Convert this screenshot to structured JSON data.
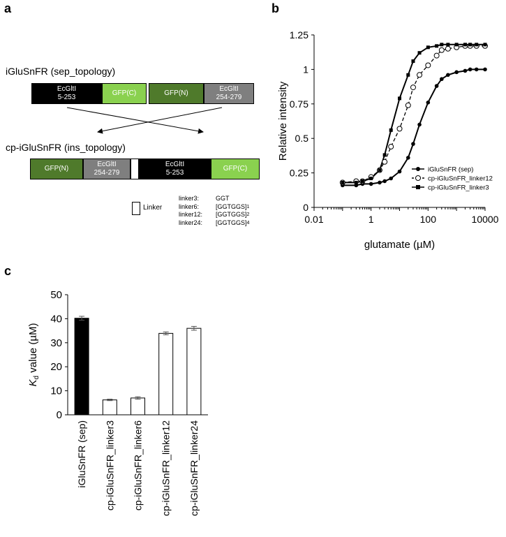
{
  "panel_a": {
    "letter": "a",
    "sep_label": "iGluSnFR (sep_topology)",
    "ins_label": "cp-iGluSnFR (ins_topology)",
    "sep_boxes": [
      {
        "line1": "EcGltI",
        "line2": "5-253",
        "color": "#000000",
        "text_color": "#ffffff"
      },
      {
        "line1": "GFP(C)",
        "line2": "",
        "color": "#8ad14f",
        "text_color": "#ffffff"
      },
      {
        "line1": "GFP(N)",
        "line2": "",
        "color": "#4f7a2b",
        "text_color": "#ffffff"
      },
      {
        "line1": "EcGltI",
        "line2": "254-279",
        "color": "#7f7f7f",
        "text_color": "#ffffff"
      }
    ],
    "ins_boxes": [
      {
        "line1": "GFP(N)",
        "line2": "",
        "color": "#4f7a2b",
        "text_color": "#ffffff"
      },
      {
        "line1": "EcGltI",
        "line2": "254-279",
        "color": "#7f7f7f",
        "text_color": "#ffffff"
      },
      {
        "line1": "",
        "line2": "",
        "color": "#ffffff",
        "text_color": "#000000"
      },
      {
        "line1": "EcGltI",
        "line2": "5-253",
        "color": "#000000",
        "text_color": "#ffffff"
      },
      {
        "line1": "GFP(C)",
        "line2": "",
        "color": "#8ad14f",
        "text_color": "#ffffff"
      }
    ],
    "linker_legend": "Linker",
    "linkers": [
      {
        "name": "linker3:",
        "seq": "GGT",
        "sub": ""
      },
      {
        "name": "linker6:",
        "seq": "[GGTGGS]",
        "sub": "1"
      },
      {
        "name": "linker12:",
        "seq": "[GGTGGS]",
        "sub": "2"
      },
      {
        "name": "linker24:",
        "seq": "[GGTGGS]",
        "sub": "4"
      }
    ]
  },
  "chart_data": [
    {
      "panel": "b",
      "type": "scatter",
      "xscale": "log",
      "xlim": [
        0.01,
        10000
      ],
      "ylim": [
        0,
        1.25
      ],
      "xticks": [
        "0.01",
        "1",
        "100",
        "10000"
      ],
      "yticks": [
        "0",
        "0.25",
        "0.5",
        "0.75",
        "1",
        "1.25"
      ],
      "xlabel": "glutamate (µM)",
      "ylabel": "Relative intensity",
      "legend_position": "bottom-right",
      "series": [
        {
          "name": "iGluSnFR (sep)",
          "marker": "filled-circle",
          "line": "solid",
          "x": [
            0.1,
            0.3,
            0.5,
            1,
            2,
            3,
            5,
            10,
            20,
            30,
            50,
            100,
            200,
            300,
            500,
            1000,
            2000,
            3000,
            5000,
            10000
          ],
          "y": [
            0.16,
            0.16,
            0.17,
            0.17,
            0.18,
            0.19,
            0.21,
            0.26,
            0.36,
            0.46,
            0.6,
            0.76,
            0.88,
            0.93,
            0.96,
            0.98,
            0.99,
            1.0,
            1.0,
            1.0
          ]
        },
        {
          "name": "cp-iGluSnFR_linker12",
          "marker": "open-circle",
          "line": "dashed",
          "x": [
            0.1,
            0.3,
            0.5,
            1,
            2,
            3,
            5,
            10,
            20,
            30,
            50,
            100,
            200,
            300,
            500,
            1000,
            2000,
            3000,
            5000,
            10000
          ],
          "y": [
            0.18,
            0.19,
            0.19,
            0.22,
            0.27,
            0.33,
            0.44,
            0.57,
            0.74,
            0.87,
            0.96,
            1.03,
            1.1,
            1.14,
            1.15,
            1.16,
            1.17,
            1.17,
            1.17,
            1.17
          ]
        },
        {
          "name": "cp-iGluSnFR_linker3",
          "marker": "filled-square",
          "line": "solid",
          "x": [
            0.1,
            0.3,
            0.5,
            1,
            2,
            3,
            5,
            10,
            20,
            30,
            50,
            100,
            200,
            300,
            500,
            1000,
            2000,
            3000,
            5000,
            10000
          ],
          "y": [
            0.18,
            0.18,
            0.19,
            0.21,
            0.27,
            0.38,
            0.56,
            0.79,
            0.96,
            1.06,
            1.12,
            1.16,
            1.17,
            1.18,
            1.18,
            1.18,
            1.18,
            1.18,
            1.18,
            1.18
          ]
        }
      ]
    },
    {
      "panel": "c",
      "type": "bar",
      "categories": [
        "iGluSnFR (sep)",
        "cp-iGluSnFR_linker3",
        "cp-iGluSnFR_linker6",
        "cp-iGluSnFR_linker12",
        "cp-iGluSnFR_linker24"
      ],
      "values": [
        40.2,
        6.2,
        7.0,
        33.9,
        36.0
      ],
      "errors": [
        0.8,
        0.3,
        0.5,
        0.6,
        0.8
      ],
      "fills": [
        "#000000",
        "#ffffff",
        "#ffffff",
        "#ffffff",
        "#ffffff"
      ],
      "ylim": [
        0,
        50
      ],
      "yticks": [
        "0",
        "10",
        "20",
        "30",
        "40",
        "50"
      ],
      "ylabel_main": "K",
      "ylabel_sub": "d",
      "ylabel_rest": " value (µM)"
    }
  ],
  "letters": {
    "b": "b",
    "c": "c"
  }
}
